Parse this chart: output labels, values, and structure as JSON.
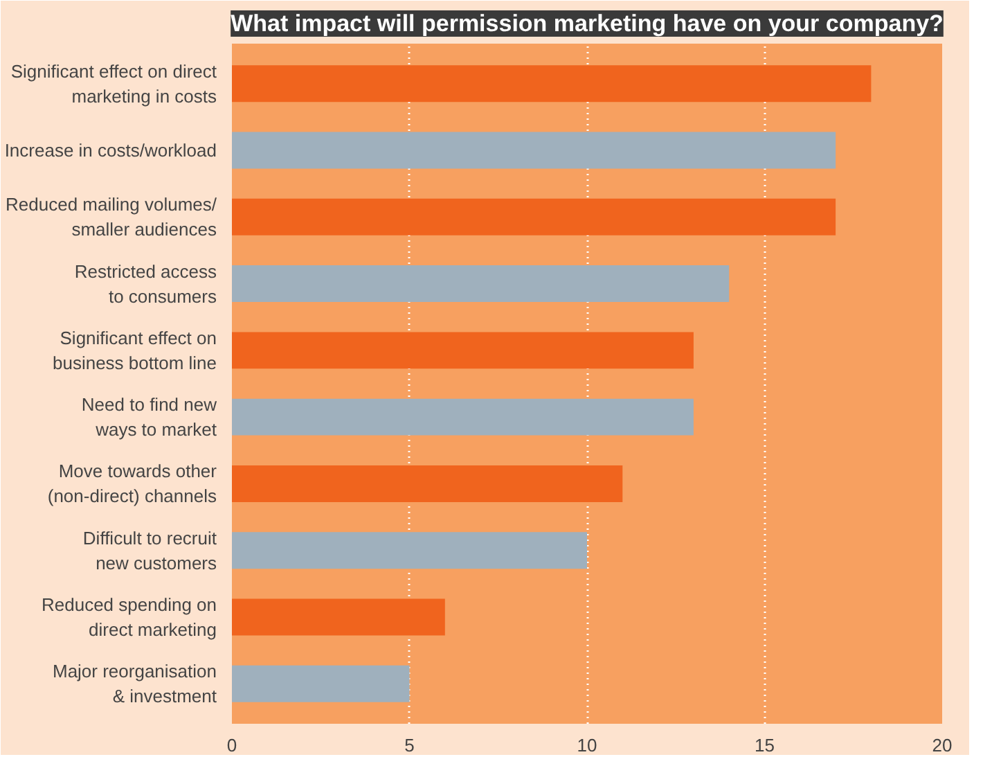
{
  "chart_data": {
    "type": "bar",
    "orientation": "horizontal",
    "title": "What impact will permission marketing have on your company?",
    "categories": [
      "Significant effect on direct\nmarketing in costs",
      "Increase in costs/workload",
      "Reduced mailing volumes/\nsmaller audiences",
      "Restricted access\nto consumers",
      "Significant effect on\nbusiness bottom line",
      "Need to find new\nways to market",
      "Move towards other\n(non-direct) channels",
      "Difficult to recruit\nnew customers",
      "Reduced spending on\ndirect marketing",
      "Major reorganisation\n& investment"
    ],
    "values": [
      18,
      17,
      17,
      14,
      13,
      13,
      11,
      10,
      6,
      5
    ],
    "colors": [
      "#f0641e",
      "#9fb0bd",
      "#f0641e",
      "#9fb0bd",
      "#f0641e",
      "#9fb0bd",
      "#f0641e",
      "#9fb0bd",
      "#f0641e",
      "#9fb0bd"
    ],
    "xlim": [
      0,
      20
    ],
    "xticks": [
      0,
      5,
      10,
      15,
      20
    ],
    "grid": "x"
  }
}
